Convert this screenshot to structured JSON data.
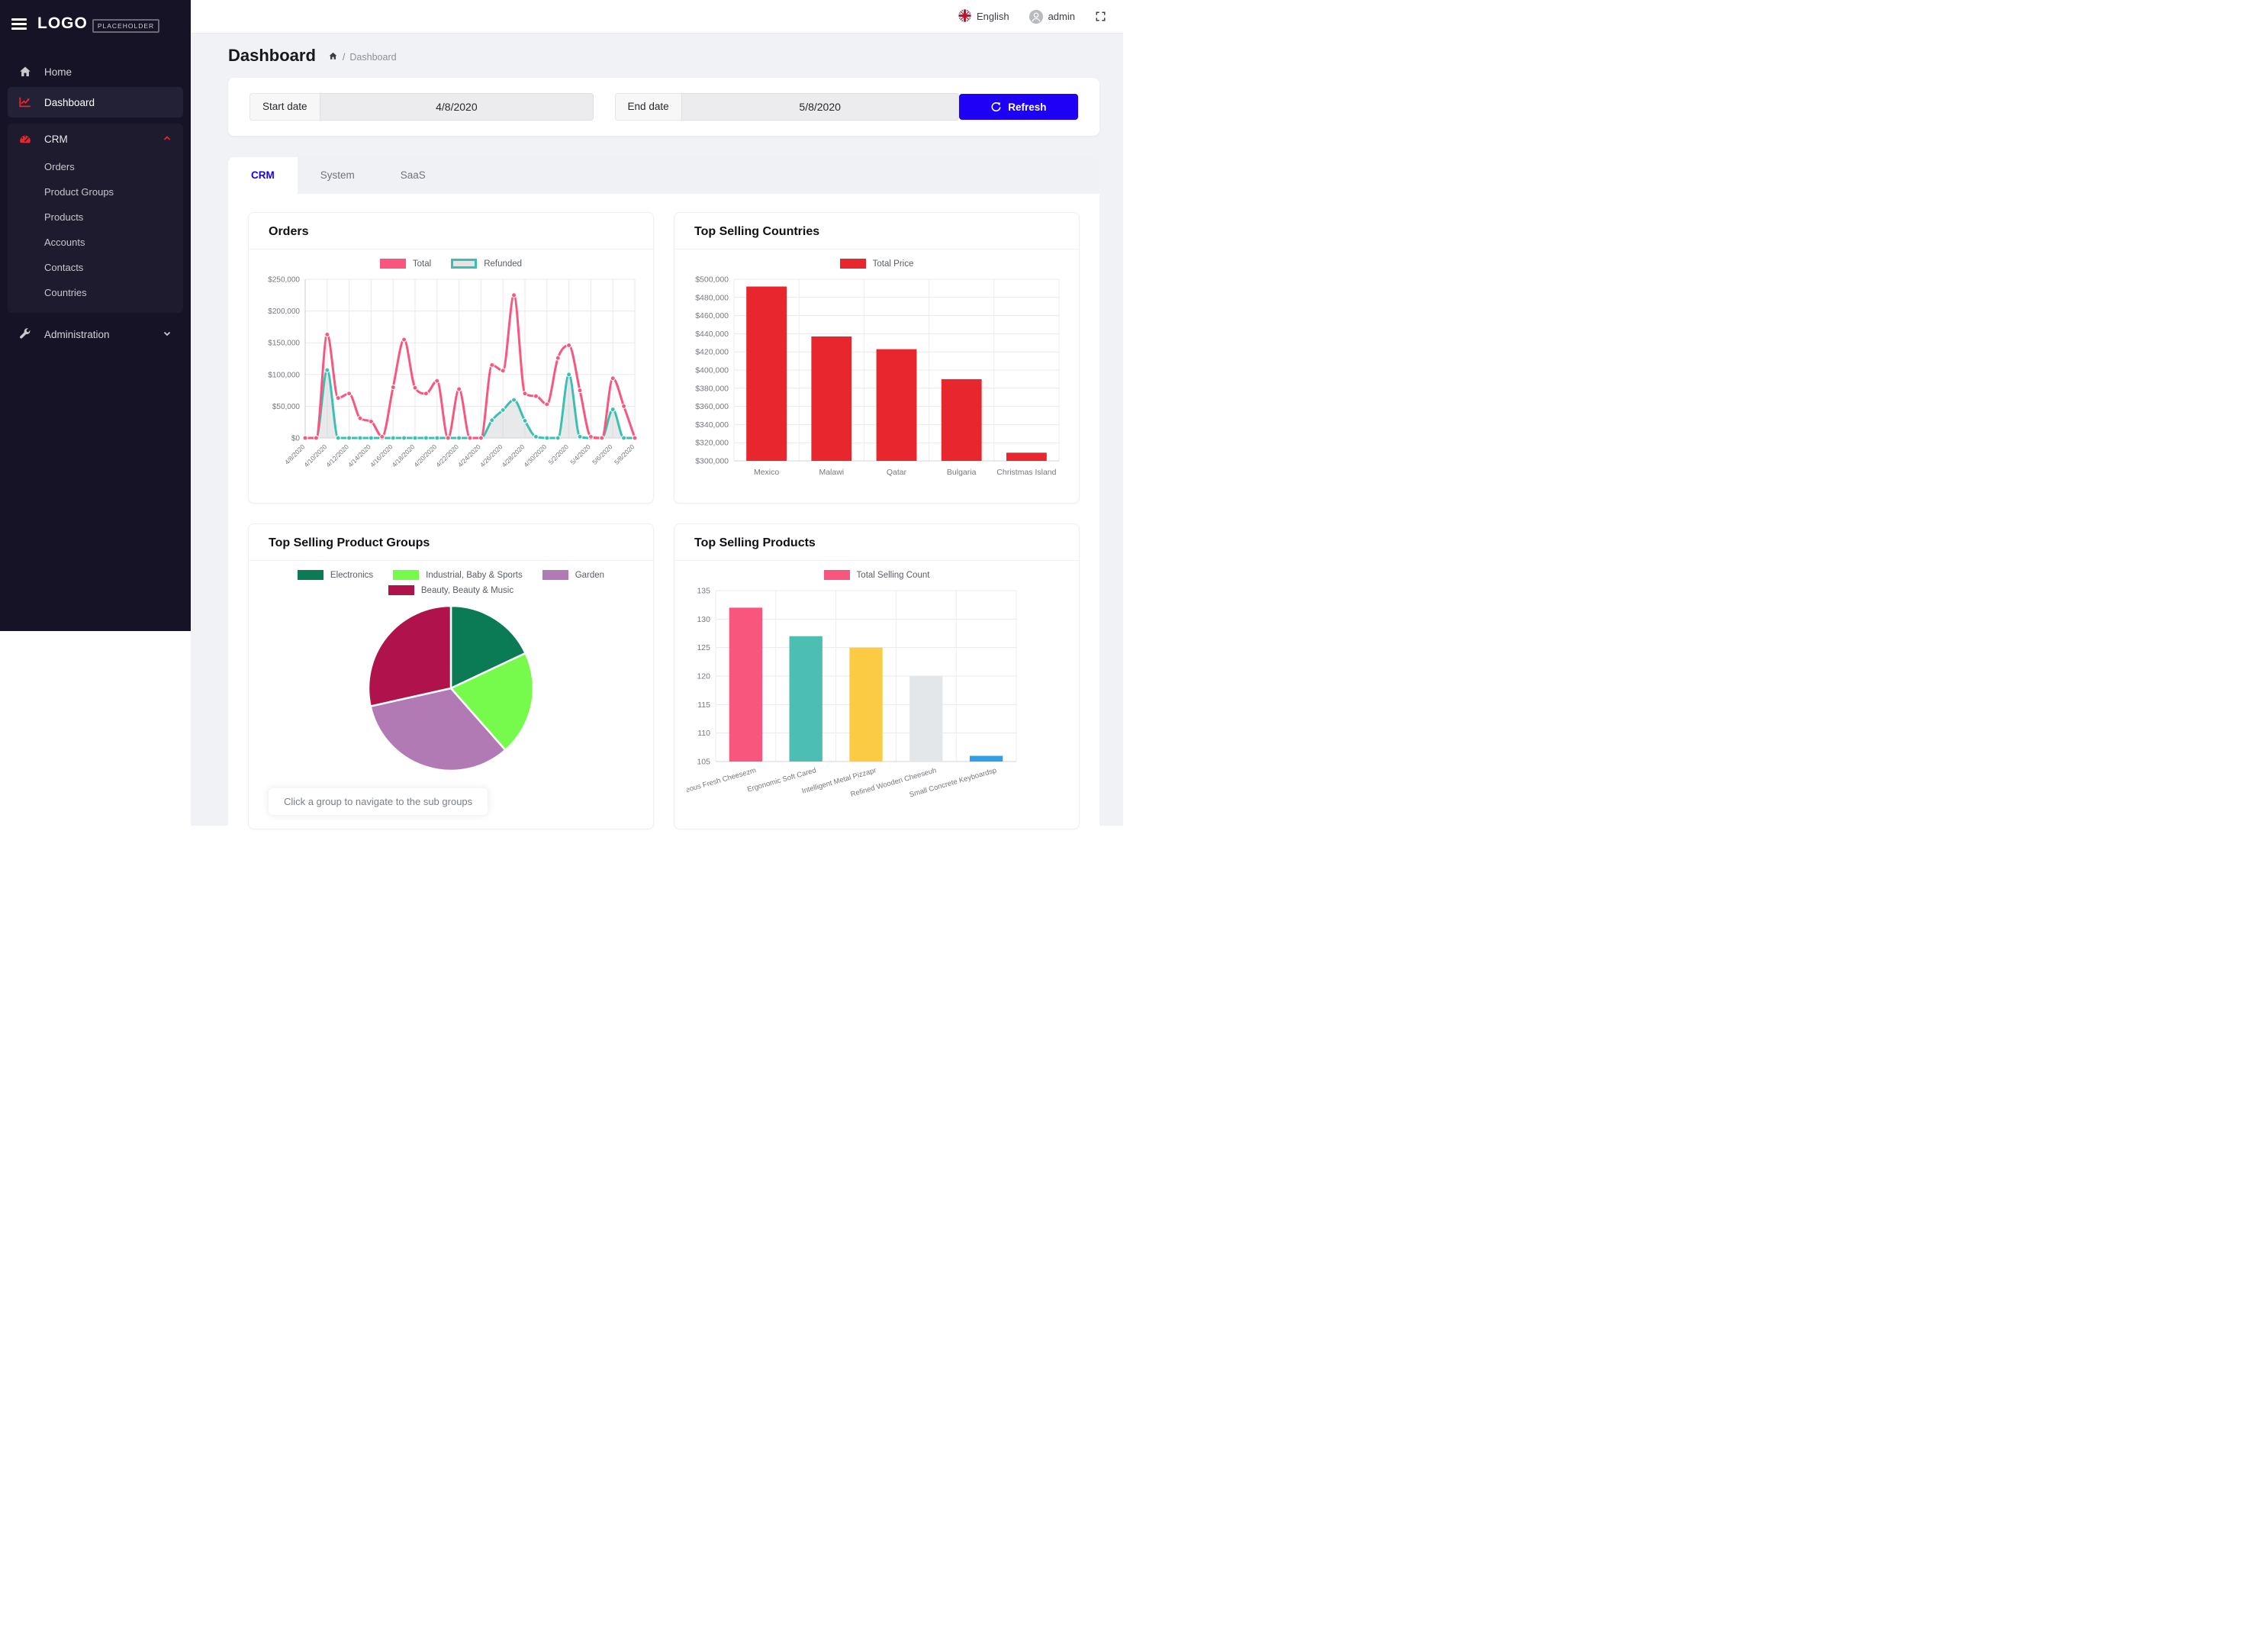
{
  "topbar": {
    "language": "English",
    "user": "admin"
  },
  "sidebar": {
    "logo_text": "LOGO",
    "logo_badge": "PLACEHOLDER",
    "home_label": "Home",
    "dashboard_label": "Dashboard",
    "crm_label": "CRM",
    "crm_children": [
      "Orders",
      "Product Groups",
      "Products",
      "Accounts",
      "Contacts",
      "Countries"
    ],
    "administration_label": "Administration"
  },
  "page": {
    "title": "Dashboard",
    "breadcrumb_current": "Dashboard"
  },
  "filters": {
    "start_label": "Start date",
    "start_value": "4/8/2020",
    "end_label": "End date",
    "end_value": "5/8/2020",
    "refresh_label": "Refresh"
  },
  "tabs": [
    {
      "label": "CRM",
      "active": true
    },
    {
      "label": "System",
      "active": false
    },
    {
      "label": "SaaS",
      "active": false
    }
  ],
  "colors": {
    "sidebar_bg": "#161327",
    "accent_red": "#e7262d",
    "primary_blue": "#1d00f5",
    "tab_active_text": "#1500ff",
    "page_bg": "#f1f2f6"
  },
  "chart_data": [
    {
      "type": "line",
      "title": "Orders",
      "x": [
        "4/8/2020",
        "4/9/2020",
        "4/10/2020",
        "4/11/2020",
        "4/12/2020",
        "4/13/2020",
        "4/14/2020",
        "4/15/2020",
        "4/16/2020",
        "4/17/2020",
        "4/18/2020",
        "4/19/2020",
        "4/20/2020",
        "4/21/2020",
        "4/22/2020",
        "4/23/2020",
        "4/24/2020",
        "4/25/2020",
        "4/26/2020",
        "4/27/2020",
        "4/28/2020",
        "4/29/2020",
        "4/30/2020",
        "5/1/2020",
        "5/2/2020",
        "5/3/2020",
        "5/4/2020",
        "5/5/2020",
        "5/6/2020",
        "5/7/2020",
        "5/8/2020"
      ],
      "x_tick_every": 2,
      "ylim": [
        0,
        250000
      ],
      "y_tick_step": 50000,
      "y_prefix": "$",
      "legend_position": "top",
      "grid": true,
      "series": [
        {
          "name": "Total",
          "color": "#f8567d",
          "values": [
            0,
            0,
            163000,
            63000,
            70000,
            31000,
            26000,
            2000,
            80000,
            155000,
            79000,
            70000,
            90000,
            0,
            77000,
            0,
            0,
            115000,
            106000,
            225000,
            70000,
            66000,
            53000,
            126000,
            146000,
            75000,
            2000,
            0,
            94000,
            50000,
            0
          ]
        },
        {
          "name": "Refunded",
          "color": "#3cbfb2",
          "legend_style": "outline",
          "area_fill": "rgba(205,207,210,0.45)",
          "values": [
            0,
            0,
            107000,
            0,
            0,
            0,
            0,
            0,
            0,
            0,
            0,
            0,
            0,
            0,
            0,
            0,
            0,
            28000,
            44000,
            60000,
            27000,
            2000,
            0,
            0,
            100000,
            2000,
            0,
            0,
            45000,
            0,
            0
          ]
        }
      ]
    },
    {
      "type": "bar",
      "title": "Top Selling Countries",
      "categories": [
        "Mexico",
        "Malawi",
        "Qatar",
        "Bulgaria",
        "Christmas Island"
      ],
      "series": [
        {
          "name": "Total Price",
          "color": "#e7262d",
          "values": [
            492000,
            437000,
            423000,
            390000,
            309000
          ]
        }
      ],
      "ylim": [
        300000,
        500000
      ],
      "y_tick_step": 20000,
      "y_prefix": "$",
      "grid": true,
      "legend_position": "top"
    },
    {
      "type": "pie",
      "title": "Top Selling Product Groups",
      "slices": [
        {
          "label": "Electronics",
          "color": "#0b7b55",
          "percent": 18
        },
        {
          "label": "Industrial, Baby & Sports",
          "color": "#76fb4c",
          "percent": 20.5
        },
        {
          "label": "Garden",
          "color": "#b17ab4",
          "percent": 33
        },
        {
          "label": "Beauty, Beauty & Music",
          "color": "#b0134b",
          "percent": 28.5
        }
      ],
      "start_angle": 0,
      "note": "Click a group to navigate to the sub groups",
      "legend_position": "top"
    },
    {
      "type": "bar",
      "title": "Top Selling Products",
      "categories": [
        "Gorgeous Fresh Cheesezm",
        "Ergonomic Soft Cared",
        "Intelligent Metal Pizzapr",
        "Refined Wooden Cheeseuh",
        "Small Concrete Keyboardsp"
      ],
      "series": [
        {
          "name": "Total Selling Count",
          "color": "#f8567d",
          "values": [
            132,
            127,
            125,
            120,
            106
          ]
        }
      ],
      "bar_colors": [
        "#f8567d",
        "#4dbfb2",
        "#fbcb43",
        "#e4e7ea",
        "#2f9fe8"
      ],
      "ylim": [
        105,
        135
      ],
      "y_tick_step": 5,
      "y_prefix": "",
      "x_label_rotate": -16,
      "grid": true,
      "legend_position": "top"
    }
  ]
}
